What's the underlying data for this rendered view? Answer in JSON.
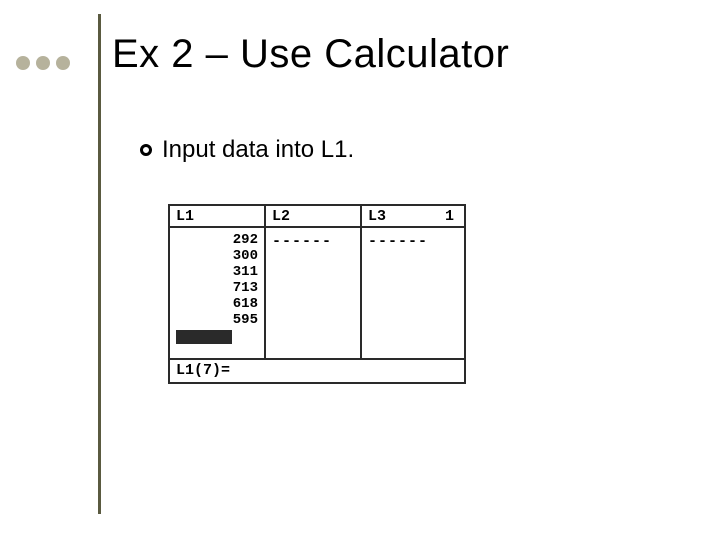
{
  "title": "Ex 2 – Use Calculator",
  "subtitle": "Input data into L1.",
  "accent_bullet_color": "#b6b29c",
  "divider_color": "#5a5a40",
  "calc": {
    "headers": {
      "c1": "L1",
      "c2": "L2",
      "c3": "L3"
    },
    "right_indicator": "1",
    "l1_values": {
      "v0": "292",
      "v1": "300",
      "v2": "311",
      "v3": "713",
      "v4": "618",
      "v5": "595"
    },
    "l2_dashes": "------",
    "l3_dashes": "------",
    "footer": "L1(7)="
  }
}
